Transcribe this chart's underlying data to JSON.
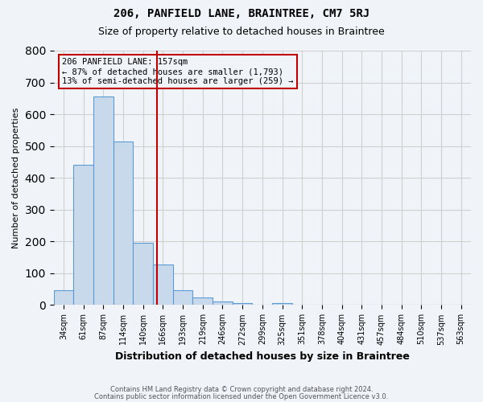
{
  "title": "206, PANFIELD LANE, BRAINTREE, CM7 5RJ",
  "subtitle": "Size of property relative to detached houses in Braintree",
  "xlabel": "Distribution of detached houses by size in Braintree",
  "ylabel": "Number of detached properties",
  "footer1": "Contains HM Land Registry data © Crown copyright and database right 2024.",
  "footer2": "Contains public sector information licensed under the Open Government Licence v3.0.",
  "bins": [
    "34sqm",
    "61sqm",
    "87sqm",
    "114sqm",
    "140sqm",
    "166sqm",
    "193sqm",
    "219sqm",
    "246sqm",
    "272sqm",
    "299sqm",
    "325sqm",
    "351sqm",
    "378sqm",
    "404sqm",
    "431sqm",
    "457sqm",
    "484sqm",
    "510sqm",
    "537sqm",
    "563sqm"
  ],
  "values": [
    47,
    440,
    657,
    515,
    197,
    128,
    47,
    24,
    10,
    7,
    0,
    7,
    0,
    0,
    0,
    0,
    0,
    0,
    0,
    0,
    0
  ],
  "bar_color": "#c8d9eb",
  "bar_edge_color": "#5b9bd5",
  "vline_x_pos": 4.72,
  "vline_color": "#c00000",
  "annotation_line1": "206 PANFIELD LANE: 157sqm",
  "annotation_line2": "← 87% of detached houses are smaller (1,793)",
  "annotation_line3": "13% of semi-detached houses are larger (259) →",
  "annotation_box_color": "#c00000",
  "ylim": [
    0,
    800
  ],
  "yticks": [
    0,
    100,
    200,
    300,
    400,
    500,
    600,
    700,
    800
  ],
  "grid_color": "#d0d0d0",
  "bg_color": "#f0f4f8"
}
